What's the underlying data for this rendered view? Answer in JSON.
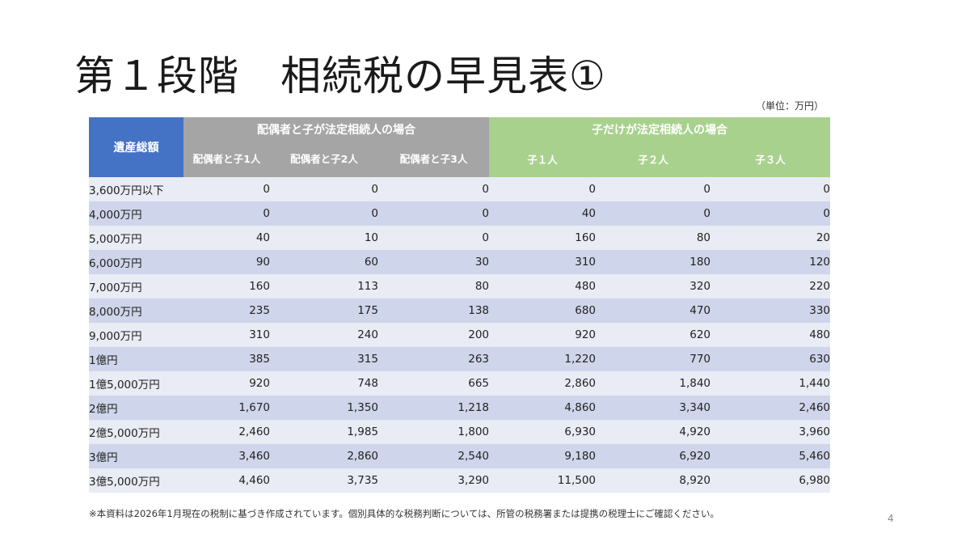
{
  "slide": {
    "title": "第１段階　相続税の早見表①",
    "unit": "（単位：万円）",
    "footnote": "※本資料は2026年1月現在の税制に基づき作成されています。個別具体的な税務判断については、所管の税務署または提携の税理士にご確認ください。",
    "page_number": "4"
  },
  "table": {
    "corner_header": "遺産総額",
    "group_spouse": "配偶者と子が法定相続人の場合",
    "group_children": "子だけが法定相続人の場合",
    "sub_headers": [
      "配偶者と子1人",
      "配偶者と子2人",
      "配偶者と子3人",
      "子１人",
      "子２人",
      "子３人"
    ],
    "rows": [
      {
        "label": "3,600万円以下",
        "values": [
          "0",
          "0",
          "0",
          "0",
          "0",
          "0"
        ]
      },
      {
        "label": "4,000万円",
        "values": [
          "0",
          "0",
          "0",
          "40",
          "0",
          "0"
        ]
      },
      {
        "label": "5,000万円",
        "values": [
          "40",
          "10",
          "0",
          "160",
          "80",
          "20"
        ]
      },
      {
        "label": "6,000万円",
        "values": [
          "90",
          "60",
          "30",
          "310",
          "180",
          "120"
        ]
      },
      {
        "label": "7,000万円",
        "values": [
          "160",
          "113",
          "80",
          "480",
          "320",
          "220"
        ]
      },
      {
        "label": "8,000万円",
        "values": [
          "235",
          "175",
          "138",
          "680",
          "470",
          "330"
        ]
      },
      {
        "label": "9,000万円",
        "values": [
          "310",
          "240",
          "200",
          "920",
          "620",
          "480"
        ]
      },
      {
        "label": "1億円",
        "values": [
          "385",
          "315",
          "263",
          "1,220",
          "770",
          "630"
        ]
      },
      {
        "label": "1億5,000万円",
        "values": [
          "920",
          "748",
          "665",
          "2,860",
          "1,840",
          "1,440"
        ]
      },
      {
        "label": "2億円",
        "values": [
          "1,670",
          "1,350",
          "1,218",
          "4,860",
          "3,340",
          "2,460"
        ]
      },
      {
        "label": "2億5,000万円",
        "values": [
          "2,460",
          "1,985",
          "1,800",
          "6,930",
          "4,920",
          "3,960"
        ]
      },
      {
        "label": "3億円",
        "values": [
          "3,460",
          "2,860",
          "2,540",
          "9,180",
          "6,920",
          "5,460"
        ]
      },
      {
        "label": "3億5,000万円",
        "values": [
          "4,460",
          "3,735",
          "3,290",
          "11,500",
          "8,920",
          "6,980"
        ]
      }
    ]
  },
  "colors": {
    "corner_header": "#4472c4",
    "group_spouse": "#a5a5a5",
    "group_children": "#a9d18e",
    "row_light": "#e9ebf5",
    "row_dark": "#cfd5ea"
  }
}
